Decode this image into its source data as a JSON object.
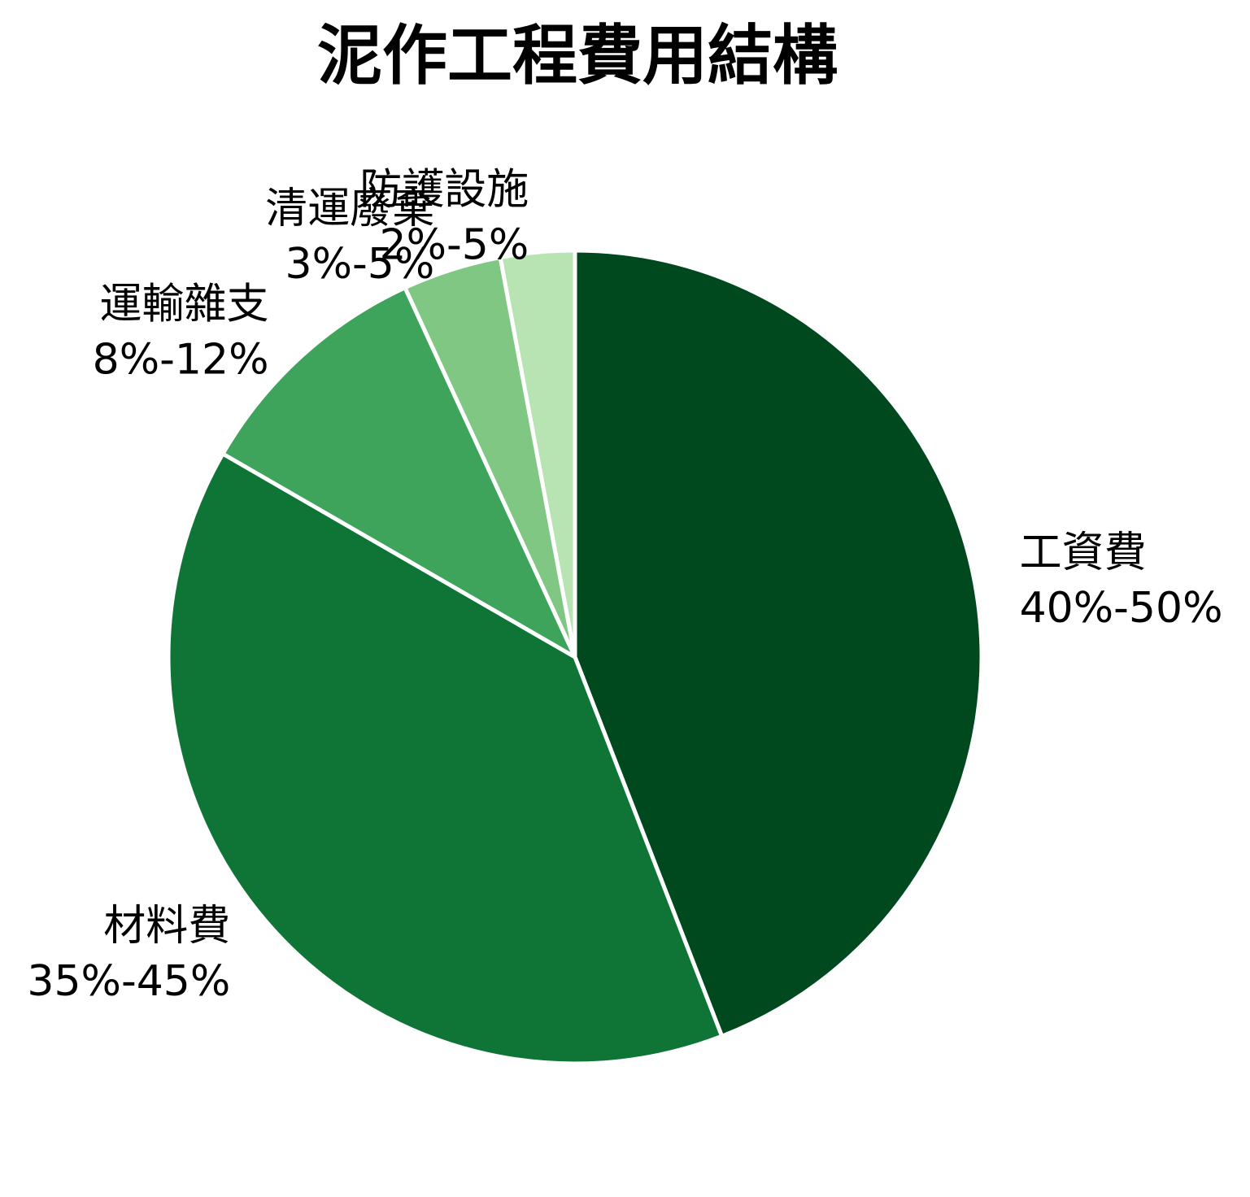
{
  "chart_data": {
    "type": "pie",
    "title": "泥作工程費用結構",
    "start_angle_deg": 90,
    "direction": "clockwise",
    "slices": [
      {
        "label": "工資費",
        "range": "40%-50%",
        "value": 45,
        "color": "#00491f"
      },
      {
        "label": "材料費",
        "range": "35%-45%",
        "value": 40,
        "color": "#0f7536"
      },
      {
        "label": "運輸雜支",
        "range": "8%-12%",
        "value": 10,
        "color": "#3ea45b"
      },
      {
        "label": "清運廢棄",
        "range": "3%-5%",
        "value": 4,
        "color": "#80c783"
      },
      {
        "label": "防護設施",
        "range": "2%-5%",
        "value": 3,
        "color": "#b8e3b3"
      }
    ],
    "legend": "none"
  }
}
